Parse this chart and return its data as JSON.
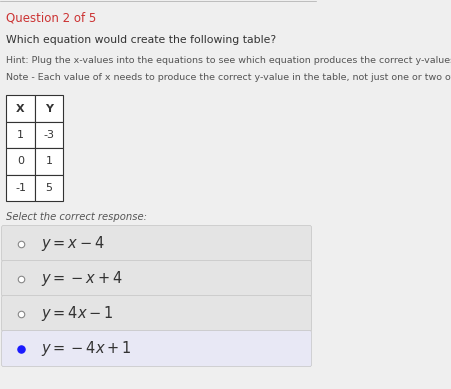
{
  "title_question": "Question 2 of 5",
  "question": "Which equation would create the following table?",
  "hint": "Hint: Plug the x-values into the equations to see which equation produces the correct y-values.",
  "note": "Note - Each value of x needs to produce the correct y-value in the table, not just one or two of them.",
  "table_rows": [
    [
      "X",
      "Y"
    ],
    [
      "1",
      "-3"
    ],
    [
      "0",
      "1"
    ],
    [
      "-1",
      "5"
    ]
  ],
  "select_label": "Select the correct response:",
  "options_latex": [
    "$y = x - 4$",
    "$y = -x + 4$",
    "$y = 4x - 1$",
    "$y = -4x + 1$"
  ],
  "correct_index": 3,
  "bg_color": "#efefef",
  "header_text_color": "#cc3333",
  "body_text_color": "#333333",
  "hint_text_color": "#555555",
  "selected_bg_color": "#e8e8f5",
  "unselected_bg_color": "#e4e4e4",
  "selected_dot_color": "#1a1aff",
  "unselected_dot_color": "#aaaaaa",
  "table_border_color": "#333333"
}
